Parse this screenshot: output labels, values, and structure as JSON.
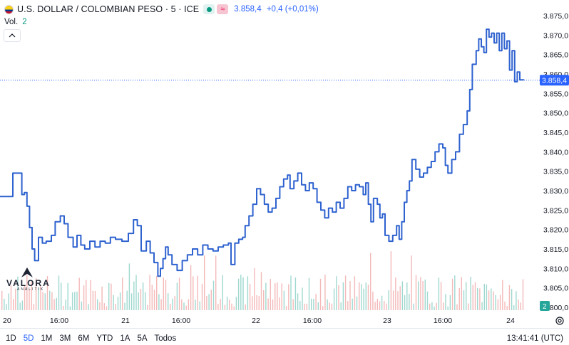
{
  "header": {
    "title": "U.S. DOLLAR / COLOMBIAN PESO · 5 · ICE",
    "price": "3.858,4",
    "change": "+0,4 (+0,01%)",
    "wave_symbol": "≈"
  },
  "volume": {
    "label": "Vol.",
    "value": "2"
  },
  "logo": {
    "brand": "VALORA",
    "sub": "ANALITIK"
  },
  "price_tag": "3.858,4",
  "volume_tag": "2",
  "bottom": {
    "ranges": [
      "1D",
      "5D",
      "1M",
      "3M",
      "6M",
      "YTD",
      "1A",
      "5A",
      "Todos"
    ],
    "active_range": "5D",
    "clock": "13:41:41 (UTC)"
  },
  "colors": {
    "line": "#2e62cf",
    "vol_up": "#9fd8cf",
    "vol_down": "#f4b9b9",
    "tag": "#2962ff",
    "vol_tag": "#26a69a"
  },
  "chart_data": {
    "type": "line",
    "y_ticks": [
      "3.875,0",
      "3.870,0",
      "3.865,0",
      "3.860,0",
      "3.855,0",
      "3.850,0",
      "3.845,0",
      "3.840,0",
      "3.835,0",
      "3.830,0",
      "3.825,0",
      "3.820,0",
      "3.815,0",
      "3.810,0",
      "3.805,0",
      "3.800,0"
    ],
    "ylim": [
      3800,
      3875
    ],
    "last_value": 3858.4,
    "x_ticks": [
      "20",
      "16:00",
      "21",
      "16:00",
      "22",
      "16:00",
      "23",
      "16:00",
      "24"
    ],
    "xlim": [
      0,
      9
    ],
    "grid": false,
    "series": [
      {
        "values": [
          [
            0.0,
            3828.5
          ],
          [
            0.08,
            3828.5
          ],
          [
            0.1,
            3834.5
          ],
          [
            0.14,
            3834.5
          ],
          [
            0.17,
            3829.0
          ],
          [
            0.19,
            3829.5
          ],
          [
            0.21,
            3826.0
          ],
          [
            0.23,
            3820.5
          ],
          [
            0.25,
            3815.0
          ],
          [
            0.27,
            3812.0
          ],
          [
            0.3,
            3818.0
          ],
          [
            0.33,
            3816.5
          ],
          [
            0.36,
            3817.0
          ],
          [
            0.4,
            3818.5
          ],
          [
            0.43,
            3822.0
          ],
          [
            0.47,
            3823.5
          ],
          [
            0.5,
            3821.5
          ],
          [
            0.53,
            3818.0
          ],
          [
            0.57,
            3815.5
          ],
          [
            0.6,
            3818.5
          ],
          [
            0.63,
            3816.0
          ],
          [
            0.66,
            3815.0
          ],
          [
            0.7,
            3817.0
          ],
          [
            0.74,
            3815.5
          ],
          [
            0.78,
            3817.0
          ],
          [
            0.82,
            3816.5
          ],
          [
            0.86,
            3818.0
          ],
          [
            0.9,
            3817.5
          ],
          [
            0.95,
            3817.0
          ],
          [
            1.0,
            3819.0
          ],
          [
            1.04,
            3822.5
          ],
          [
            1.07,
            3821.0
          ],
          [
            1.1,
            3814.5
          ],
          [
            1.14,
            3817.0
          ],
          [
            1.17,
            3814.0
          ],
          [
            1.2,
            3811.5
          ],
          [
            1.23,
            3808.0
          ],
          [
            1.25,
            3810.0
          ],
          [
            1.27,
            3812.5
          ],
          [
            1.29,
            3815.5
          ],
          [
            1.31,
            3813.5
          ],
          [
            1.34,
            3811.0
          ],
          [
            1.38,
            3809.5
          ],
          [
            1.42,
            3812.0
          ],
          [
            1.46,
            3813.5
          ],
          [
            1.5,
            3815.0
          ],
          [
            1.54,
            3813.5
          ],
          [
            1.58,
            3816.0
          ],
          [
            1.62,
            3815.0
          ],
          [
            1.66,
            3814.5
          ],
          [
            1.7,
            3815.5
          ],
          [
            1.74,
            3816.0
          ],
          [
            1.78,
            3816.5
          ],
          [
            1.8,
            3811.0
          ],
          [
            1.83,
            3816.5
          ],
          [
            1.86,
            3817.5
          ],
          [
            1.89,
            3818.0
          ],
          [
            1.91,
            3821.0
          ],
          [
            1.94,
            3823.5
          ],
          [
            1.97,
            3826.5
          ],
          [
            2.0,
            3830.5
          ],
          [
            2.03,
            3829.0
          ],
          [
            2.06,
            3826.5
          ],
          [
            2.09,
            3824.5
          ],
          [
            2.12,
            3825.5
          ],
          [
            2.15,
            3828.0
          ],
          [
            2.18,
            3831.0
          ],
          [
            2.21,
            3833.0
          ],
          [
            2.24,
            3834.0
          ],
          [
            2.26,
            3830.5
          ],
          [
            2.29,
            3832.5
          ],
          [
            2.32,
            3834.5
          ],
          [
            2.35,
            3831.5
          ],
          [
            2.38,
            3830.0
          ],
          [
            2.41,
            3832.0
          ],
          [
            2.44,
            3830.5
          ],
          [
            2.47,
            3827.0
          ],
          [
            2.5,
            3825.0
          ],
          [
            2.53,
            3823.0
          ],
          [
            2.56,
            3825.5
          ],
          [
            2.59,
            3824.5
          ],
          [
            2.62,
            3827.0
          ],
          [
            2.65,
            3825.5
          ],
          [
            2.68,
            3828.0
          ],
          [
            2.71,
            3831.0
          ],
          [
            2.74,
            3830.0
          ],
          [
            2.77,
            3831.5
          ],
          [
            2.8,
            3831.0
          ],
          [
            2.83,
            3829.0
          ],
          [
            2.85,
            3832.0
          ],
          [
            2.87,
            3826.5
          ],
          [
            2.89,
            3822.0
          ],
          [
            2.91,
            3828.0
          ],
          [
            2.94,
            3826.5
          ],
          [
            2.96,
            3823.0
          ],
          [
            2.98,
            3824.0
          ],
          [
            3.0,
            3818.5
          ],
          [
            3.03,
            3817.0
          ],
          [
            3.06,
            3818.5
          ],
          [
            3.09,
            3821.0
          ],
          [
            3.11,
            3817.5
          ],
          [
            3.13,
            3822.0
          ],
          [
            3.15,
            3827.0
          ],
          [
            3.17,
            3830.0
          ],
          [
            3.19,
            3832.5
          ],
          [
            3.21,
            3838.0
          ],
          [
            3.24,
            3835.5
          ],
          [
            3.27,
            3833.5
          ],
          [
            3.3,
            3834.5
          ],
          [
            3.33,
            3836.0
          ],
          [
            3.36,
            3837.5
          ],
          [
            3.39,
            3840.0
          ],
          [
            3.42,
            3842.0
          ],
          [
            3.45,
            3841.0
          ],
          [
            3.47,
            3836.5
          ],
          [
            3.49,
            3834.5
          ],
          [
            3.52,
            3838.0
          ],
          [
            3.55,
            3840.0
          ],
          [
            3.58,
            3844.5
          ],
          [
            3.61,
            3847.0
          ],
          [
            3.64,
            3850.5
          ],
          [
            3.66,
            3856.0
          ],
          [
            3.68,
            3862.5
          ],
          [
            3.71,
            3866.0
          ],
          [
            3.73,
            3869.0
          ],
          [
            3.75,
            3867.0
          ],
          [
            3.77,
            3865.5
          ],
          [
            3.79,
            3871.5
          ],
          [
            3.81,
            3869.5
          ],
          [
            3.83,
            3870.5
          ],
          [
            3.85,
            3868.0
          ],
          [
            3.87,
            3870.5
          ],
          [
            3.89,
            3866.0
          ],
          [
            3.91,
            3870.5
          ],
          [
            3.93,
            3866.5
          ],
          [
            3.95,
            3868.5
          ],
          [
            3.97,
            3861.0
          ],
          [
            3.99,
            3866.0
          ],
          [
            4.01,
            3858.0
          ],
          [
            4.03,
            3860.5
          ],
          [
            4.05,
            3858.5
          ],
          [
            4.08,
            3858.4
          ]
        ]
      }
    ],
    "volume": {
      "count": 230,
      "max": 12
    }
  }
}
